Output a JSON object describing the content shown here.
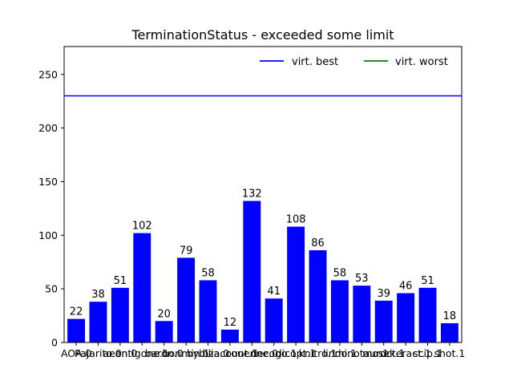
{
  "chart_data": {
    "type": "bar",
    "title": "TerminationStatus - exceeded some limit",
    "xlabel": "",
    "ylabel": "",
    "categories": [
      "AOA.0",
      "Pajarito.0",
      "aeon.0",
      "antigone.1",
      "baron.0",
      "bonmin.1",
      "bybilia.0",
      "bzacount.1",
      "couenne.0",
      "decogo.1",
      "dicopt.1",
      "knitro.1",
      "lindo.1",
      "minotaur.1",
      "mosek.1",
      "octeract.1",
      "scip.1",
      "shot.1"
    ],
    "values": [
      22,
      38,
      51,
      102,
      20,
      79,
      58,
      12,
      132,
      41,
      108,
      86,
      58,
      53,
      39,
      46,
      51,
      18
    ],
    "bar_color": "#0000ff",
    "ylim": [
      0,
      276
    ],
    "yticks": [
      0,
      50,
      100,
      150,
      200,
      250
    ],
    "hlines": [
      {
        "name": "virt. best",
        "y": 230,
        "color": "#0000ff"
      },
      {
        "name": "virt. worst",
        "y": null,
        "color": "#008000"
      }
    ],
    "legend": {
      "placement": "top-right",
      "entries": [
        "virt. best",
        "virt. worst"
      ]
    },
    "grid": false
  }
}
